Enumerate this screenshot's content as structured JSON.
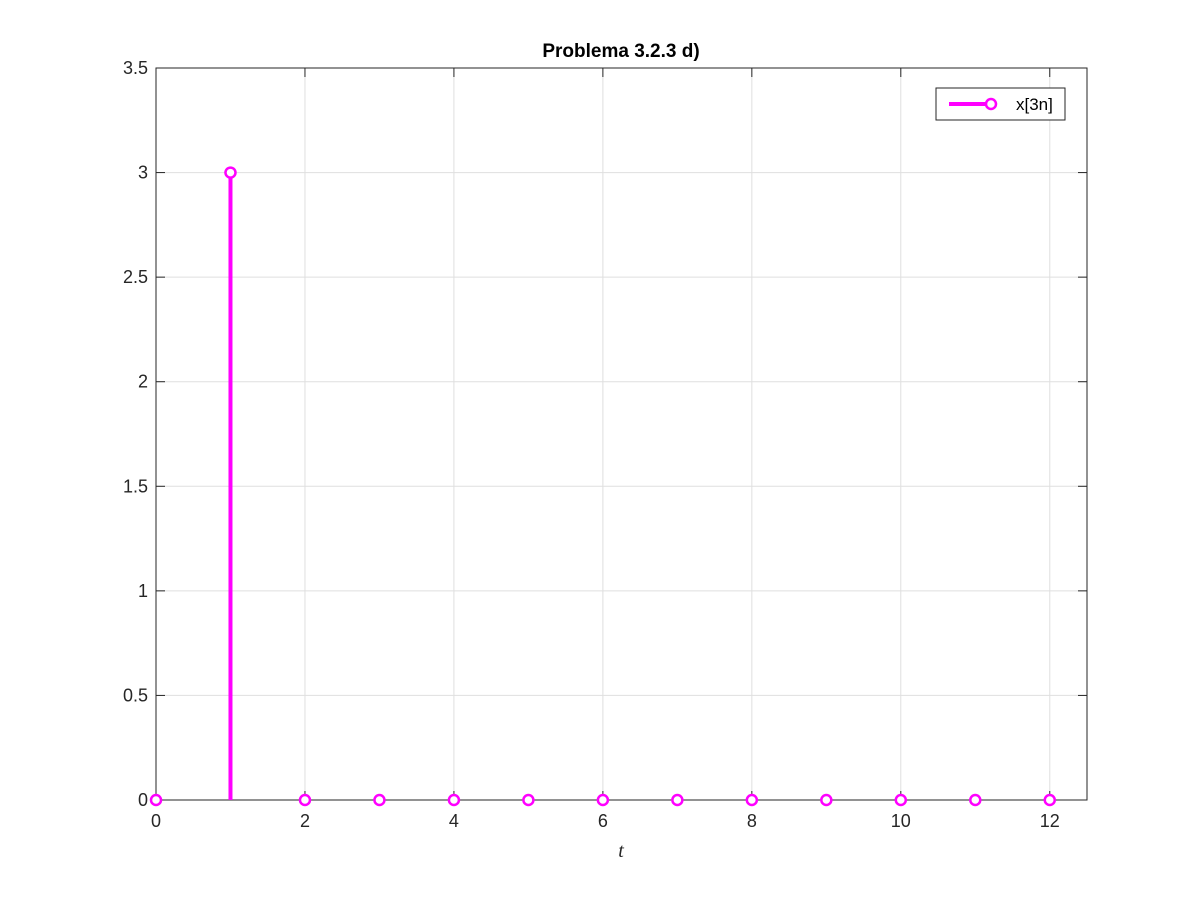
{
  "chart_data": {
    "type": "stem",
    "title": "Problema 3.2.3 d)",
    "xlabel": "t",
    "ylabel": "",
    "xlim": [
      0,
      12.5
    ],
    "ylim": [
      0,
      3.5
    ],
    "xticks": [
      0,
      2,
      4,
      6,
      8,
      10,
      12
    ],
    "xtick_labels": [
      "0",
      "2",
      "4",
      "6",
      "8",
      "10",
      "12"
    ],
    "yticks": [
      0,
      0.5,
      1,
      1.5,
      2,
      2.5,
      3,
      3.5
    ],
    "ytick_labels": [
      "0",
      "0.5",
      "1",
      "1.5",
      "2",
      "2.5",
      "3",
      "3.5"
    ],
    "grid": true,
    "legend_position": "top-right",
    "series": [
      {
        "name": "x[3n]",
        "color": "#ff00ff",
        "marker": "circle",
        "x": [
          0,
          1,
          2,
          3,
          4,
          5,
          6,
          7,
          8,
          9,
          10,
          11,
          12
        ],
        "y": [
          0,
          3,
          0,
          0,
          0,
          0,
          0,
          0,
          0,
          0,
          0,
          0,
          0
        ]
      }
    ]
  }
}
